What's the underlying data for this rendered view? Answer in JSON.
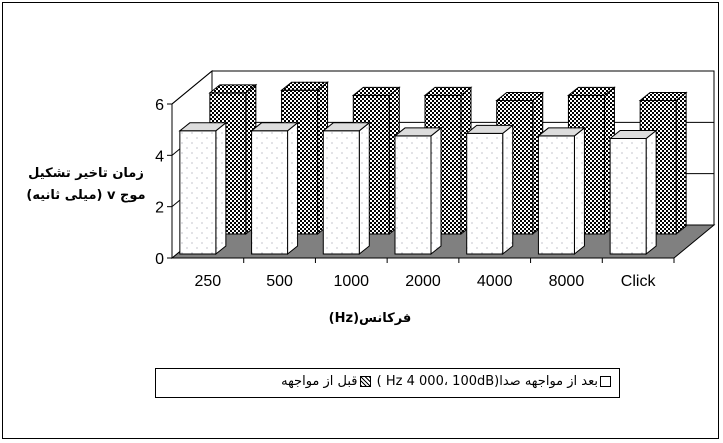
{
  "chart_data": {
    "type": "bar",
    "categories": [
      "250",
      "500",
      "1000",
      "2000",
      "4000",
      "8000",
      "Click"
    ],
    "series": [
      {
        "name": "بعد از مواجهه صدا(Hz 4 000، 100dB )",
        "values": [
          4.8,
          4.8,
          4.8,
          4.6,
          4.7,
          4.6,
          4.5
        ]
      },
      {
        "name": "قبل از مواجهه",
        "values": [
          5.5,
          5.6,
          5.4,
          5.4,
          5.2,
          5.4,
          5.2
        ]
      }
    ],
    "title": "",
    "xlabel": "فرکانس(Hz)",
    "ylabel": "زمان تاخیر تشکیل موج v (میلی ثانیه)",
    "ylabel_line1": "زمان تاخیر تشکیل",
    "ylabel_line2": "موج v (میلی ثانیه)",
    "ylim": [
      0,
      6
    ],
    "yticks": [
      "0",
      "2",
      "4",
      "6"
    ],
    "grid": true,
    "legend_position": "bottom",
    "legend_text_after": "بعد از مواجهه صدا(Hz 4 000، 100dB )",
    "legend_text_before": "قبل از مواجهه",
    "colors": {
      "after": "#ffffff",
      "before": "#000000",
      "floor": "#808080"
    }
  }
}
